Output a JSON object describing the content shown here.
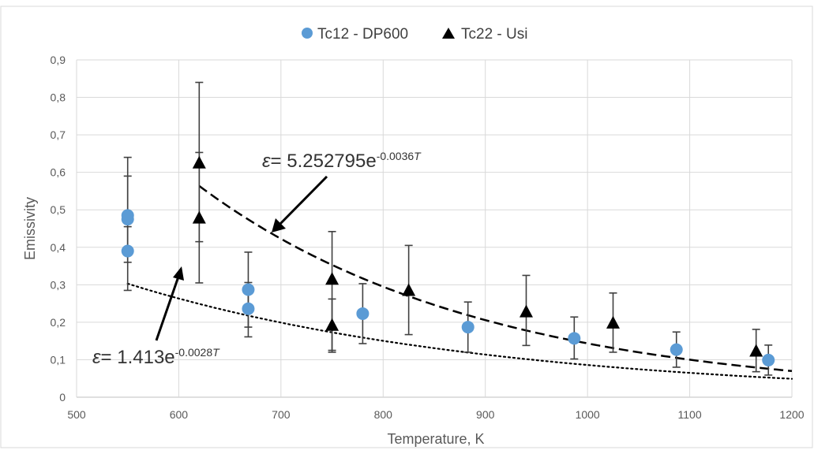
{
  "chart_data": {
    "type": "scatter",
    "xlabel": "Temperature, K",
    "ylabel": "Emissivity",
    "xlim": [
      500,
      1200
    ],
    "ylim": [
      0,
      0.9
    ],
    "x_ticks": [
      "500",
      "600",
      "700",
      "800",
      "900",
      "1000",
      "1100",
      "1200"
    ],
    "y_ticks": [
      "0",
      "0,1",
      "0,2",
      "0,3",
      "0,4",
      "0,5",
      "0,6",
      "0,7",
      "0,8",
      "0,9"
    ],
    "grid": true,
    "legend_position": "top",
    "series": [
      {
        "name": "Tc12 - DP600",
        "marker": "circle",
        "color": "#5b9bd5",
        "points": [
          {
            "x": 550,
            "y": 0.485,
            "err_low": 0.105,
            "err_high": 0.155
          },
          {
            "x": 550,
            "y": 0.475,
            "err_low": 0.115,
            "err_high": 0.115
          },
          {
            "x": 550,
            "y": 0.39,
            "err_low": 0.105,
            "err_high": 0.065
          },
          {
            "x": 668,
            "y": 0.287,
            "err_low": 0.1,
            "err_high": 0.1
          },
          {
            "x": 668,
            "y": 0.236,
            "err_low": 0.075,
            "err_high": 0.07
          },
          {
            "x": 780,
            "y": 0.223,
            "err_low": 0.08,
            "err_high": 0.08
          },
          {
            "x": 883,
            "y": 0.187,
            "err_low": 0.067,
            "err_high": 0.067
          },
          {
            "x": 987,
            "y": 0.157,
            "err_low": 0.055,
            "err_high": 0.057
          },
          {
            "x": 1087,
            "y": 0.127,
            "err_low": 0.047,
            "err_high": 0.047
          },
          {
            "x": 1177,
            "y": 0.099,
            "err_low": 0.04,
            "err_high": 0.04
          }
        ]
      },
      {
        "name": "Tc22 - Usi",
        "marker": "triangle",
        "color": "#000000",
        "points": [
          {
            "x": 620,
            "y": 0.625,
            "err_low": 0.21,
            "err_high": 0.215
          },
          {
            "x": 620,
            "y": 0.478,
            "err_low": 0.173,
            "err_high": 0.175
          },
          {
            "x": 750,
            "y": 0.315,
            "err_low": 0.19,
            "err_high": 0.127
          },
          {
            "x": 750,
            "y": 0.192,
            "err_low": 0.072,
            "err_high": 0.07
          },
          {
            "x": 825,
            "y": 0.285,
            "err_low": 0.118,
            "err_high": 0.12
          },
          {
            "x": 940,
            "y": 0.228,
            "err_low": 0.09,
            "err_high": 0.097
          },
          {
            "x": 1025,
            "y": 0.198,
            "err_low": 0.078,
            "err_high": 0.08
          },
          {
            "x": 1165,
            "y": 0.123,
            "err_low": 0.055,
            "err_high": 0.058
          }
        ]
      }
    ],
    "fits": [
      {
        "label": "ε= 5.252795e^{-0.0036T}",
        "a": 5.252795,
        "b": -0.0036,
        "x_range": [
          620,
          1200
        ],
        "style": "dashed"
      },
      {
        "label": "ε= 1.413e^{-0.0028T}",
        "a": 1.413,
        "b": -0.0028,
        "x_range": [
          550,
          1200
        ],
        "style": "dotted"
      }
    ],
    "annotations": [
      {
        "prefix": "ε",
        "base": "= 5.252795e",
        "exponent": "-0.0036",
        "exp_var": "T"
      },
      {
        "prefix": "ε",
        "base": "= 1.413e",
        "exponent": "-0.0028",
        "exp_var": "T"
      }
    ]
  }
}
